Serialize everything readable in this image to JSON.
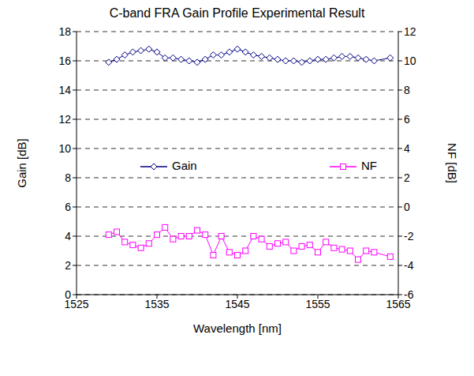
{
  "chart_data": {
    "type": "line",
    "title": "C-band FRA Gain Profile Experimental Result",
    "x_label": "Wavelength [nm]",
    "y_label": "Gain [dB]",
    "y2_label": "NF [dB]",
    "x": [
      1529,
      1530,
      1531,
      1532,
      1533,
      1534,
      1535,
      1536,
      1537,
      1538,
      1539,
      1540,
      1541,
      1542,
      1543,
      1544,
      1545,
      1546,
      1547,
      1548,
      1549,
      1550,
      1551,
      1552,
      1553,
      1554,
      1555,
      1556,
      1557,
      1558,
      1559,
      1560,
      1561,
      1562,
      1564
    ],
    "series": [
      {
        "name": "Gain",
        "color": "#000080",
        "marker": "diamond",
        "values": [
          15.9,
          16.1,
          16.4,
          16.6,
          16.7,
          16.8,
          16.6,
          16.2,
          16.2,
          16.1,
          16.0,
          15.9,
          16.1,
          16.4,
          16.4,
          16.6,
          16.8,
          16.6,
          16.4,
          16.3,
          16.2,
          16.1,
          16.0,
          16.0,
          15.9,
          16.0,
          16.1,
          16.1,
          16.2,
          16.3,
          16.3,
          16.2,
          16.1,
          16.0,
          16.2
        ]
      },
      {
        "name": "NF",
        "color": "#ff00ff",
        "marker": "square",
        "axis": "y2",
        "values": [
          -1.9,
          -1.7,
          -2.4,
          -2.6,
          -2.8,
          -2.5,
          -1.9,
          -1.4,
          -2.2,
          -2.0,
          -2.0,
          -1.6,
          -1.9,
          -3.3,
          -2.0,
          -3.1,
          -3.3,
          -3.0,
          -2.0,
          -2.2,
          -2.7,
          -2.5,
          -2.4,
          -3.0,
          -2.7,
          -2.6,
          -3.1,
          -2.4,
          -2.8,
          -2.9,
          -3.0,
          -3.6,
          -3.0,
          -3.1,
          -3.4
        ]
      }
    ],
    "xlim": [
      1525,
      1565
    ],
    "xticks": [
      1525,
      1535,
      1545,
      1555,
      1565
    ],
    "ylim": [
      0,
      18
    ],
    "yticks": [
      0,
      2,
      4,
      6,
      8,
      10,
      12,
      14,
      16,
      18
    ],
    "y2lim": [
      -6,
      12
    ],
    "y2ticks": [
      -6,
      -4,
      -2,
      0,
      2,
      4,
      6,
      8,
      10,
      12
    ],
    "grid": true,
    "legend": "center"
  }
}
